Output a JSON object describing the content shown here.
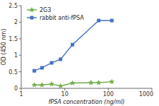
{
  "chart_data": {
    "type": "line",
    "xlabel": "fPSA concentration (ng/ml)",
    "ylabel": "OD (450 nm)",
    "log": "x",
    "xlim": [
      1,
      1000
    ],
    "xticks": [
      1,
      10,
      100,
      1000
    ],
    "ylim": [
      0,
      2.5
    ],
    "yticks": [
      0,
      0.5,
      1,
      1.5,
      2,
      2.5
    ],
    "grid": false,
    "legend": "upper left",
    "series": [
      {
        "name": "rabbit anti-fPSA",
        "color": "#4472C4",
        "marker": "square",
        "x": [
          2,
          3,
          5,
          8,
          15,
          60,
          120
        ],
        "values": [
          0.53,
          0.62,
          0.77,
          0.88,
          1.32,
          2.05,
          2.05
        ]
      },
      {
        "name": "2G3",
        "color": "#70AD47",
        "marker": "star",
        "x": [
          2,
          3,
          5,
          8,
          15,
          40,
          60,
          120
        ],
        "values": [
          0.1,
          0.1,
          0.13,
          0.07,
          0.16,
          0.17,
          0.17,
          0.2
        ]
      }
    ]
  }
}
